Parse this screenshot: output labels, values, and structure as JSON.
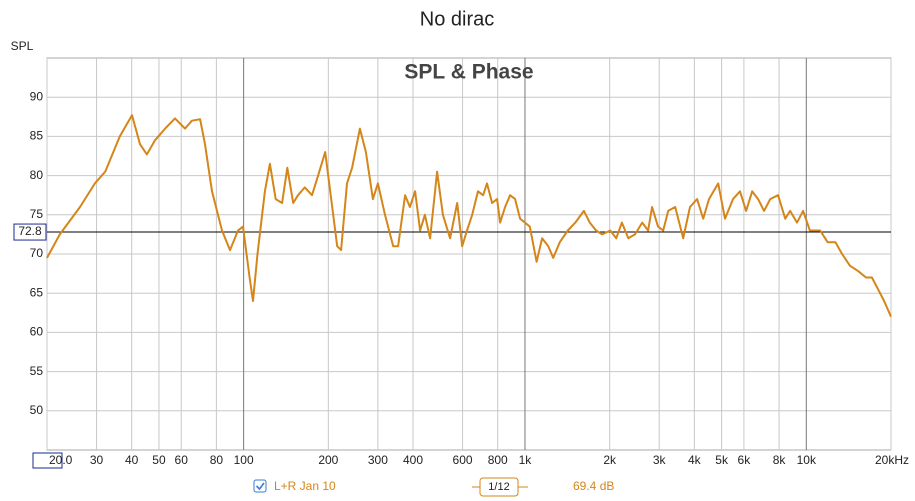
{
  "chart_data": {
    "type": "line",
    "title": "No dirac",
    "subtitle": "SPL & Phase",
    "y_label": "SPL",
    "xscale": "log",
    "grid": true,
    "xlim": [
      20,
      20000
    ],
    "ylim": [
      45,
      95
    ],
    "xticks": [
      {
        "value": 20,
        "label": "20.0"
      },
      30,
      40,
      50,
      60,
      80,
      100,
      200,
      300,
      400,
      600,
      800,
      {
        "value": 1000,
        "label": "1k"
      },
      {
        "value": 2000,
        "label": "2k"
      },
      {
        "value": 3000,
        "label": "3k"
      },
      {
        "value": 4000,
        "label": "4k"
      },
      {
        "value": 5000,
        "label": "5k"
      },
      {
        "value": 6000,
        "label": "6k"
      },
      {
        "value": 8000,
        "label": "8k"
      },
      {
        "value": 10000,
        "label": "10k"
      },
      {
        "value": 20000,
        "label": "20kHz"
      }
    ],
    "yticks": [
      50,
      55,
      60,
      65,
      70,
      75,
      80,
      85,
      90
    ],
    "cursor_y": 72.8,
    "smoothing": "1/12",
    "readout": "69.4 dB",
    "x": [
      20,
      22.2,
      26.2,
      29.6,
      32.2,
      36.3,
      40.1,
      42.8,
      45.3,
      48.4,
      52.6,
      57,
      61.9,
      65.5,
      70,
      72.9,
      77.2,
      83.8,
      89.4,
      95.5,
      99.5,
      105,
      108,
      112,
      119,
      124,
      130,
      137,
      143,
      150,
      156,
      165,
      175,
      184,
      195,
      203,
      215,
      222,
      233,
      243,
      259,
      272,
      288,
      300,
      318,
      340,
      354,
      375,
      390,
      407,
      424,
      441,
      460,
      487,
      511,
      542,
      574,
      598,
      622,
      649,
      681,
      710,
      733,
      764,
      796,
      816,
      850,
      885,
      922,
      961,
      1000,
      1040,
      1100,
      1150,
      1210,
      1260,
      1330,
      1420,
      1510,
      1620,
      1700,
      1790,
      1880,
      2010,
      2110,
      2210,
      2330,
      2460,
      2610,
      2740,
      2830,
      2970,
      3100,
      3230,
      3420,
      3650,
      3860,
      4090,
      4300,
      4510,
      4860,
      5140,
      5490,
      5810,
      6110,
      6420,
      6740,
      7080,
      7440,
      7940,
      8410,
      8760,
      9270,
      9740,
      10300,
      11200,
      11900,
      12700,
      13400,
      14300,
      15300,
      16300,
      17100,
      18000,
      18900,
      20000
    ],
    "series": [
      {
        "name": "L+R Jan 10",
        "color": "#d4861a",
        "values": [
          69.5,
          72.5,
          76,
          79,
          80.5,
          85,
          87.7,
          84,
          82.7,
          84.5,
          86,
          87.3,
          86,
          87,
          87.2,
          84,
          78,
          73,
          70.5,
          73,
          73.5,
          67,
          64,
          70,
          78,
          81.5,
          77,
          76.5,
          81,
          76.5,
          77.5,
          78.5,
          77.5,
          80,
          83,
          78,
          71,
          70.5,
          79,
          81,
          86,
          83,
          77,
          79,
          75,
          71,
          71,
          77.5,
          76,
          78,
          73,
          75,
          72,
          80.5,
          75,
          72,
          76.5,
          71,
          73,
          75,
          78,
          77.5,
          79,
          76.5,
          77,
          74,
          76,
          77.5,
          77,
          74.5,
          74,
          73.5,
          69,
          72,
          71,
          69.5,
          71.5,
          73,
          74,
          75.5,
          74,
          73,
          72.5,
          73,
          72,
          74,
          72,
          72.5,
          74,
          73,
          76,
          73.5,
          73,
          75.5,
          76,
          72,
          76,
          77,
          74.5,
          77,
          79,
          74.5,
          77,
          78,
          75.5,
          78,
          77,
          75.5,
          77,
          77.5,
          74.5,
          75.5,
          74,
          75.5,
          73,
          73,
          71.5,
          71.5,
          70,
          68.5,
          67.8,
          67,
          67,
          65.5,
          64,
          62
        ]
      }
    ]
  }
}
